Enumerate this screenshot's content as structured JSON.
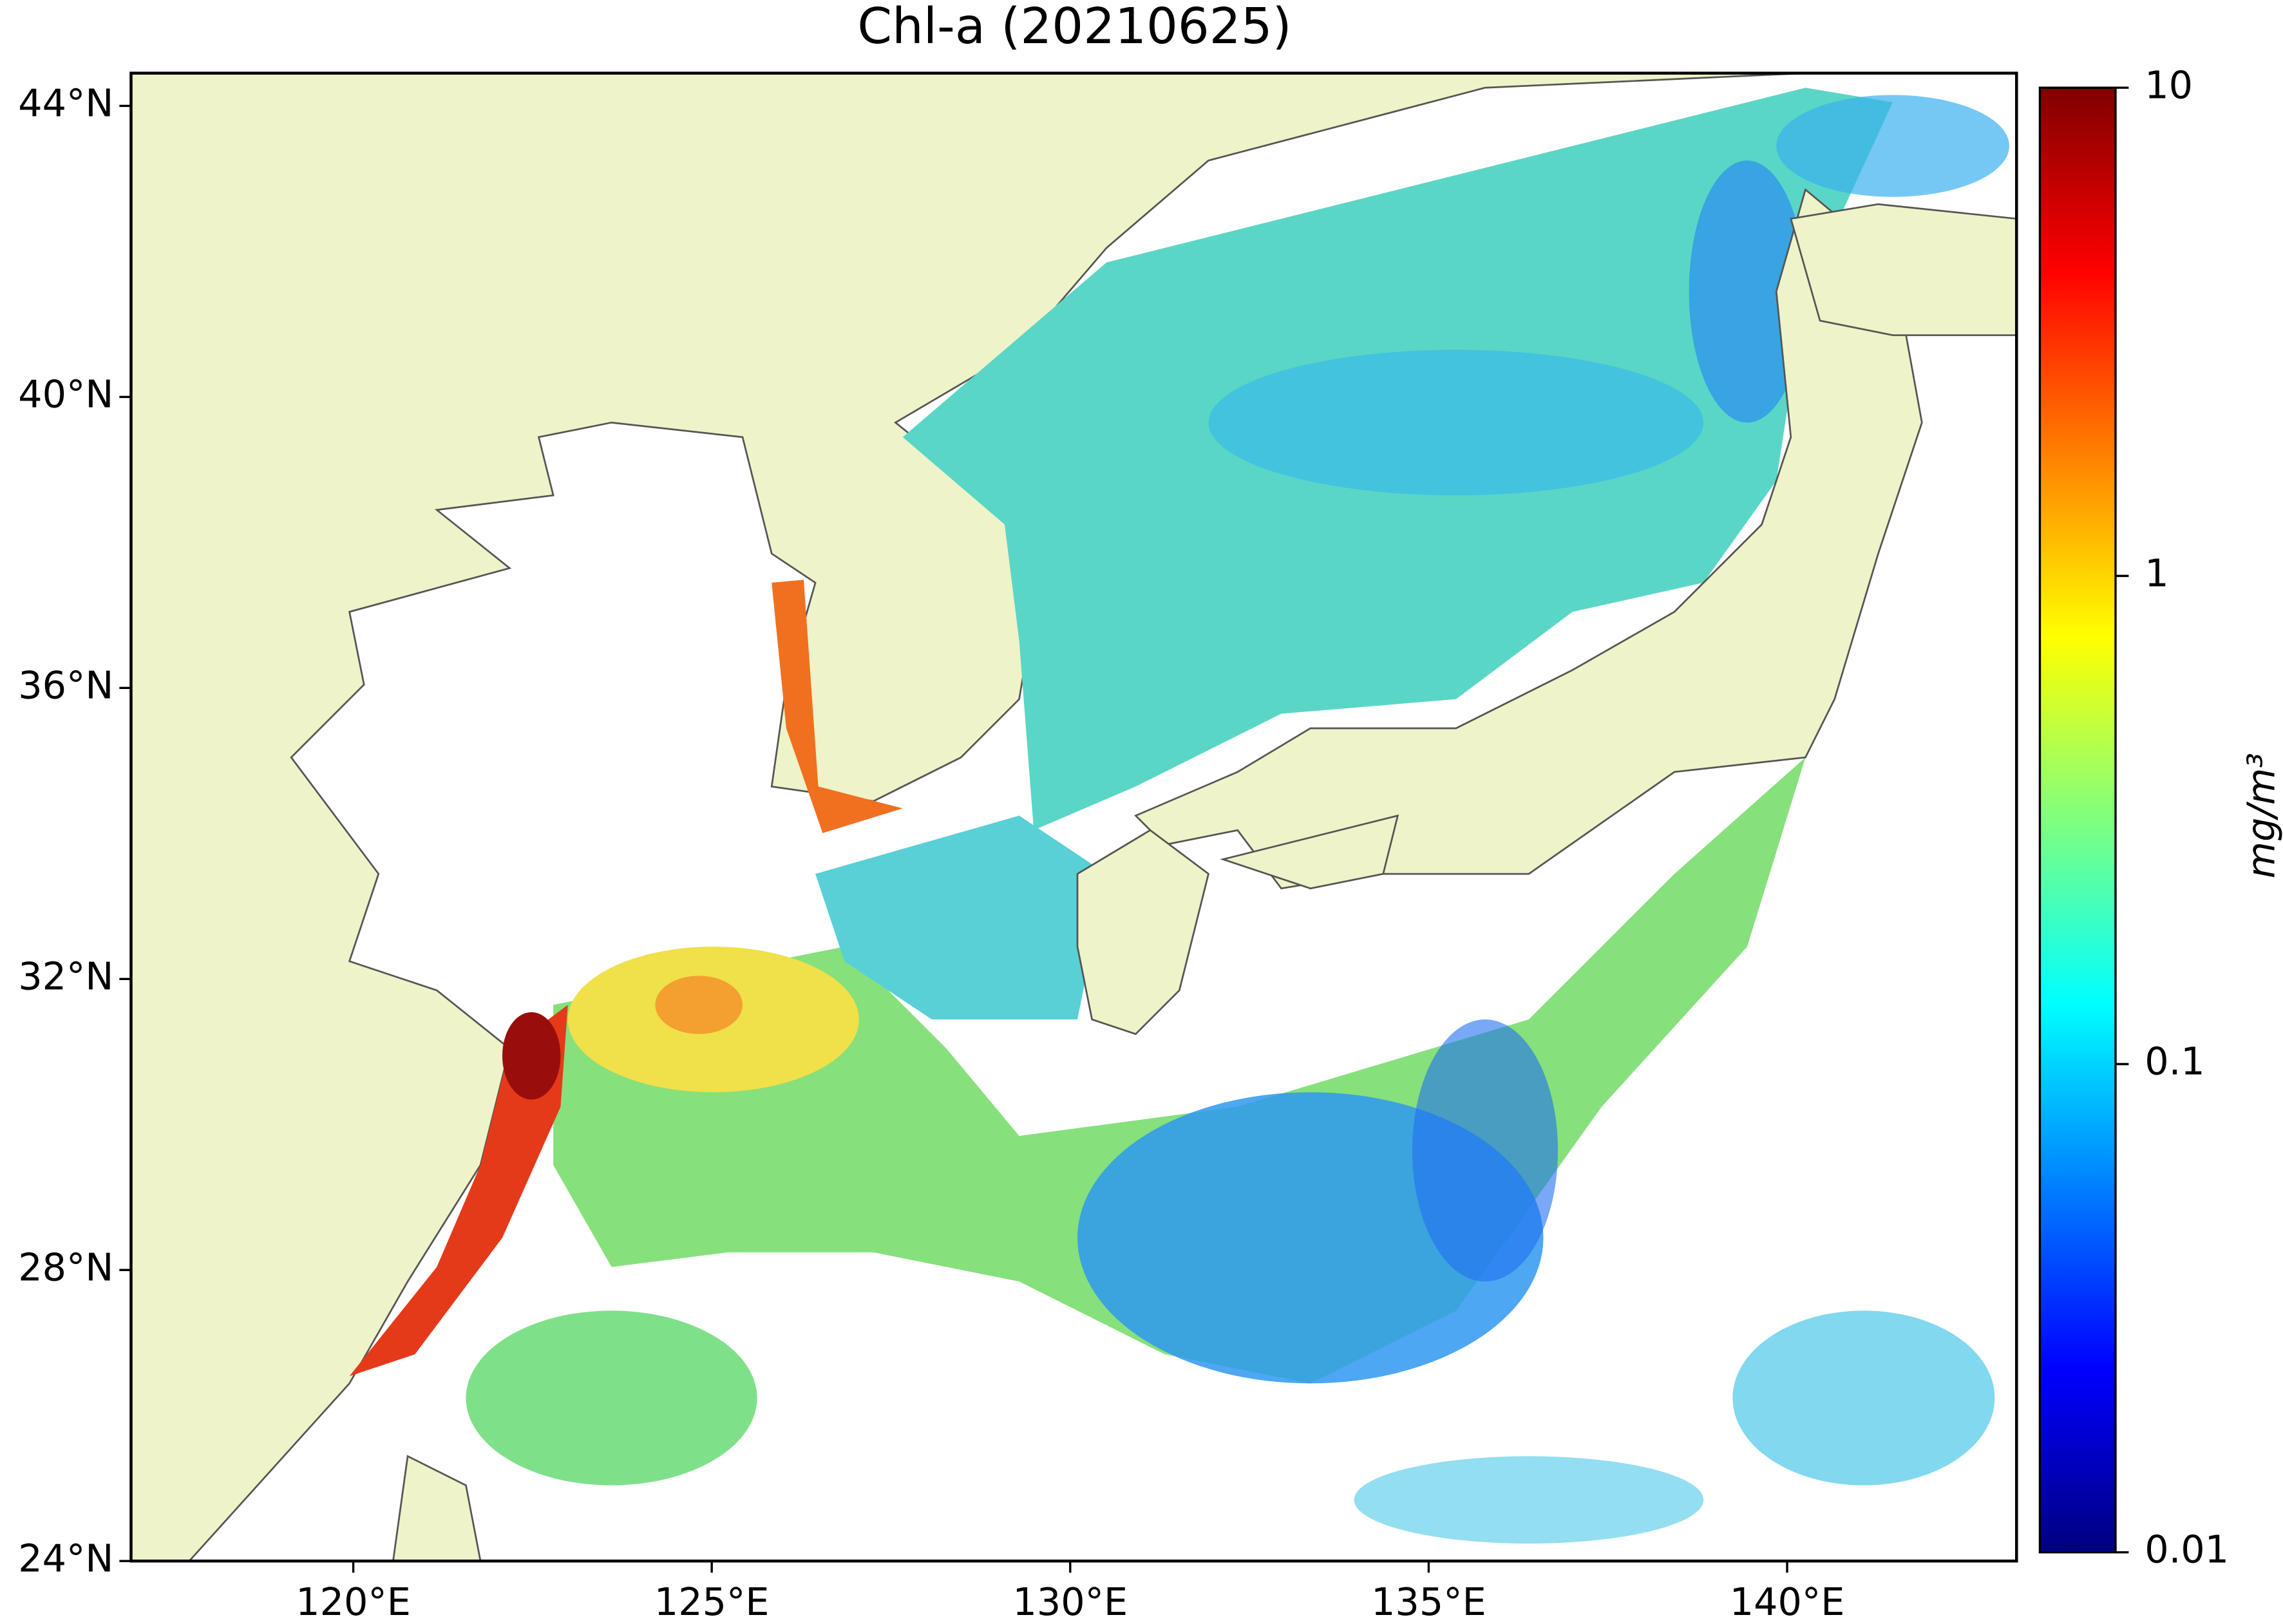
{
  "title": "Chl-a (20210625)",
  "map": {
    "lat_range": [
      24,
      44.45
    ],
    "lon_range": [
      116.9,
      143.2
    ],
    "lat_ticks": [
      {
        "value": 24,
        "label": "24°N"
      },
      {
        "value": 28,
        "label": "28°N"
      },
      {
        "value": 32,
        "label": "32°N"
      },
      {
        "value": 36,
        "label": "36°N"
      },
      {
        "value": 40,
        "label": "40°N"
      },
      {
        "value": 44,
        "label": "44°N"
      }
    ],
    "lon_ticks": [
      {
        "value": 120,
        "label": "120°E"
      },
      {
        "value": 125,
        "label": "125°E"
      },
      {
        "value": 130,
        "label": "130°E"
      },
      {
        "value": 135,
        "label": "135°E"
      },
      {
        "value": 140,
        "label": "140°E"
      }
    ]
  },
  "colorbar": {
    "label": "mg/m³",
    "scale": "log",
    "colormap": "jet",
    "range": [
      0.01,
      10
    ],
    "ticks": [
      0.01,
      0.1,
      1,
      10
    ]
  }
}
